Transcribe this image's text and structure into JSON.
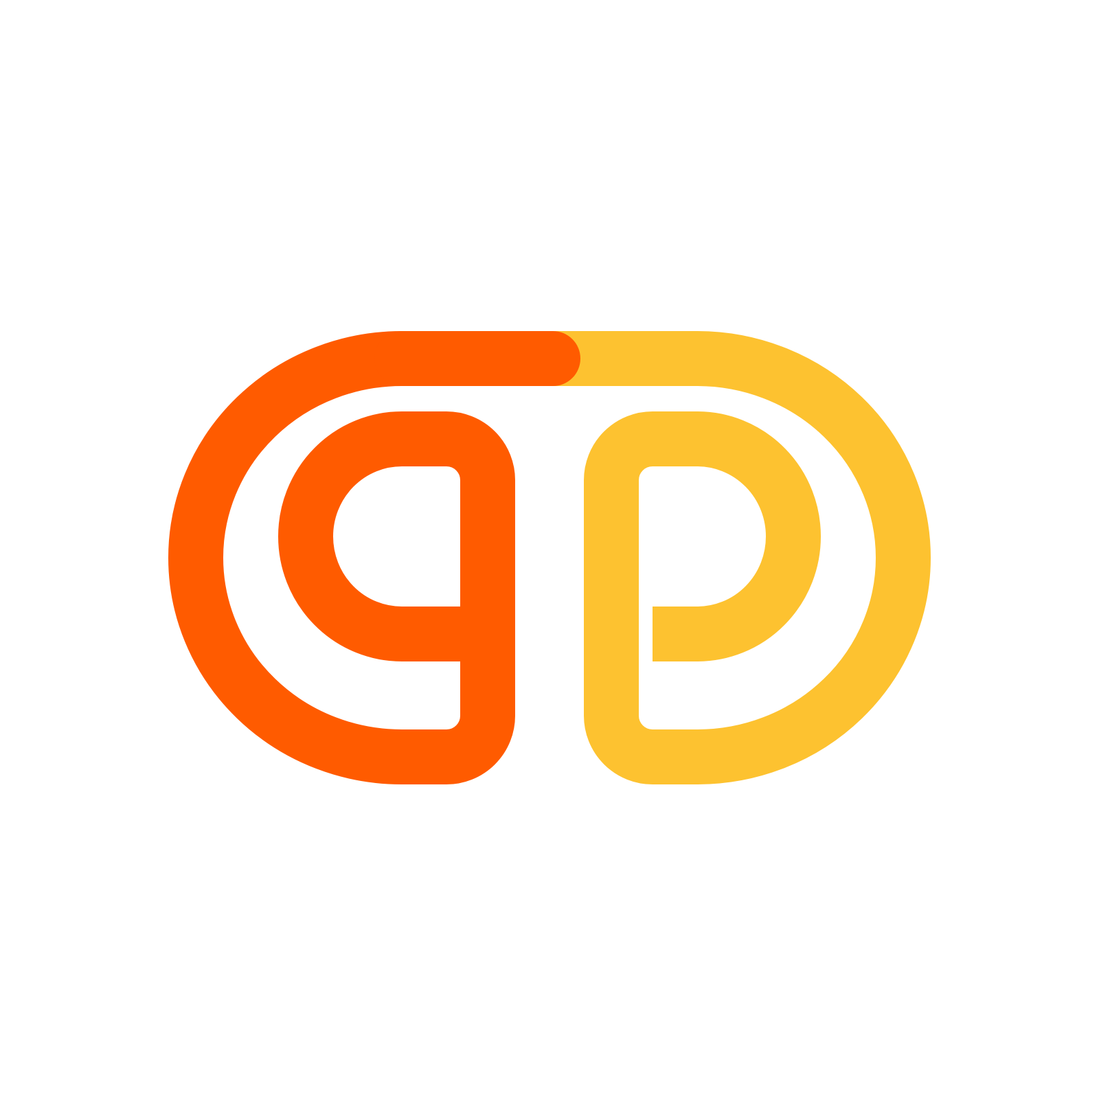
{
  "logo": {
    "icon": "gp-monogram-logo",
    "colors": {
      "primary": "#FF5B00",
      "secondary": "#FDC230",
      "background": "#FFFFFF"
    }
  }
}
